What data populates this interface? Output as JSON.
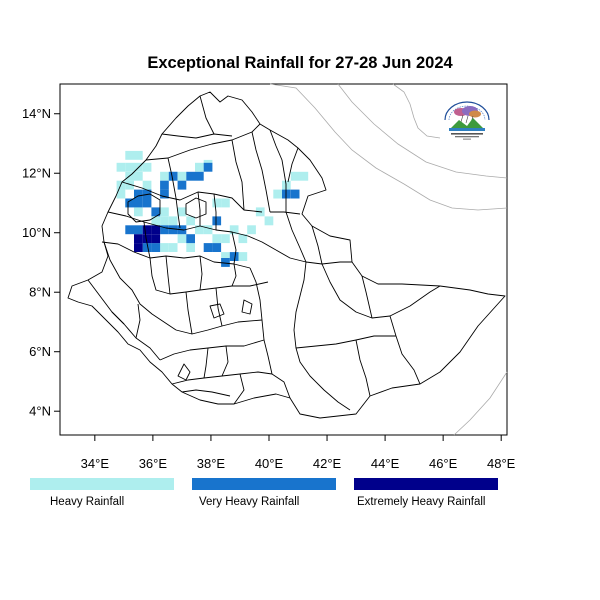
{
  "title": "Exceptional Rainfall for 27-28 Jun 2024",
  "axes": {
    "x_ticks": [
      "34°E",
      "36°E",
      "38°E",
      "40°E",
      "42°E",
      "44°E",
      "46°E",
      "48°E"
    ],
    "y_ticks": [
      "14°N",
      "12°N",
      "10°N",
      "8°N",
      "6°N",
      "4°N"
    ],
    "x_values": [
      34,
      36,
      38,
      40,
      42,
      44,
      46,
      48
    ],
    "y_values": [
      14,
      12,
      10,
      8,
      6,
      4
    ],
    "xlim": [
      32.8,
      48.2
    ],
    "ylim": [
      3.2,
      15.0
    ]
  },
  "legend": [
    {
      "label": "Heavy Rainfall",
      "color": "#aeeeee"
    },
    {
      "label": "Very Heavy Rainfall",
      "color": "#1874cd"
    },
    {
      "label": "Extremely Heavy Rainfall",
      "color": "#00008b"
    }
  ],
  "logo_icon": "meteorology-institute-logo-icon",
  "rain_cells": {
    "heavy": [
      [
        35.2,
        12.6
      ],
      [
        35.5,
        12.6
      ],
      [
        34.9,
        12.2
      ],
      [
        35.2,
        12.2
      ],
      [
        35.5,
        12.2
      ],
      [
        35.8,
        12.2
      ],
      [
        35.2,
        11.9
      ],
      [
        35.5,
        11.9
      ],
      [
        36.4,
        11.9
      ],
      [
        36.7,
        11.9
      ],
      [
        37.0,
        11.9
      ],
      [
        37.6,
        12.2
      ],
      [
        37.9,
        12.3
      ],
      [
        35.2,
        11.6
      ],
      [
        34.9,
        11.3
      ],
      [
        35.2,
        11.0
      ],
      [
        35.5,
        10.7
      ],
      [
        36.4,
        10.7
      ],
      [
        37.0,
        10.7
      ],
      [
        36.1,
        10.4
      ],
      [
        36.4,
        10.4
      ],
      [
        36.7,
        10.4
      ],
      [
        37.3,
        10.4
      ],
      [
        37.6,
        10.1
      ],
      [
        37.9,
        10.1
      ],
      [
        38.2,
        9.8
      ],
      [
        38.5,
        9.8
      ],
      [
        38.8,
        10.1
      ],
      [
        39.1,
        9.8
      ],
      [
        39.4,
        10.1
      ],
      [
        36.4,
        9.5
      ],
      [
        36.7,
        9.5
      ],
      [
        37.0,
        9.8
      ],
      [
        37.3,
        9.5
      ],
      [
        38.5,
        9.2
      ],
      [
        39.1,
        9.2
      ],
      [
        40.3,
        11.3
      ],
      [
        40.6,
        11.6
      ],
      [
        40.9,
        11.9
      ],
      [
        41.2,
        11.9
      ],
      [
        39.7,
        10.7
      ],
      [
        40.0,
        10.4
      ],
      [
        38.2,
        11.0
      ],
      [
        38.5,
        11.0
      ],
      [
        34.9,
        11.6
      ],
      [
        35.8,
        11.6
      ]
    ],
    "very_heavy": [
      [
        36.7,
        11.9
      ],
      [
        37.0,
        11.6
      ],
      [
        37.3,
        11.9
      ],
      [
        37.6,
        11.9
      ],
      [
        37.9,
        12.2
      ],
      [
        36.4,
        11.6
      ],
      [
        35.5,
        11.3
      ],
      [
        35.8,
        11.3
      ],
      [
        35.2,
        11.0
      ],
      [
        35.5,
        11.0
      ],
      [
        35.8,
        11.0
      ],
      [
        36.1,
        10.7
      ],
      [
        35.2,
        10.1
      ],
      [
        35.5,
        10.1
      ],
      [
        36.4,
        10.1
      ],
      [
        36.7,
        10.1
      ],
      [
        37.0,
        10.1
      ],
      [
        37.3,
        9.8
      ],
      [
        35.8,
        9.5
      ],
      [
        36.1,
        9.5
      ],
      [
        37.9,
        9.5
      ],
      [
        38.2,
        9.5
      ],
      [
        38.5,
        9.0
      ],
      [
        38.8,
        9.2
      ],
      [
        40.6,
        11.3
      ],
      [
        40.9,
        11.3
      ],
      [
        38.2,
        10.4
      ],
      [
        36.4,
        11.3
      ]
    ],
    "extreme": [
      [
        35.5,
        9.8
      ],
      [
        35.8,
        9.8
      ],
      [
        36.1,
        9.8
      ],
      [
        35.8,
        10.1
      ],
      [
        36.1,
        10.1
      ],
      [
        35.5,
        9.5
      ]
    ]
  }
}
